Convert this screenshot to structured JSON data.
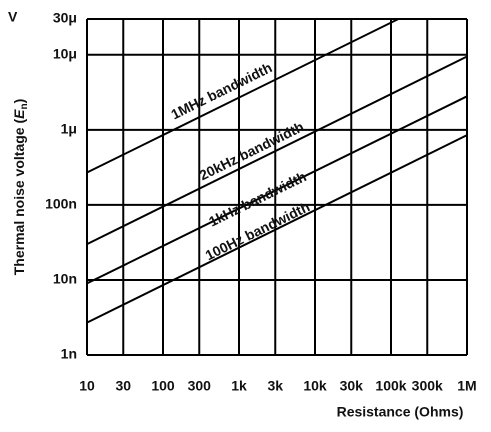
{
  "chart_data": {
    "type": "line",
    "y_unit": "V",
    "y_label": {
      "prefix": "Thermal noise voltage (",
      "symbol": "E",
      "subscript": "n",
      "suffix": ")"
    },
    "x_label": "Resistance (Ohms)",
    "log_x": true,
    "log_y": true,
    "grid": true,
    "xlim": [
      10,
      1000000
    ],
    "xticks": [
      10,
      30,
      100,
      300,
      {
        "value": 1000,
        "label": "1k"
      },
      {
        "value": 3000,
        "label": "3k"
      },
      {
        "value": 10000,
        "label": "10k"
      },
      {
        "value": 30000,
        "label": "30k"
      },
      {
        "value": 100000,
        "label": "100k"
      },
      {
        "value": 300000,
        "label": "300k"
      },
      {
        "value": 1000000,
        "label": "1M"
      }
    ],
    "ylim": [
      1e-09,
      3e-05
    ],
    "yticks": [
      {
        "value": 1e-09,
        "label": "1n"
      },
      {
        "value": 1e-08,
        "label": "10n"
      },
      {
        "value": 1e-07,
        "label": "100n"
      },
      {
        "value": 1e-06,
        "label": "1μ"
      },
      {
        "value": 1e-05,
        "label": "10μ"
      },
      {
        "value": 3e-05,
        "label": "30μ"
      }
    ],
    "series": [
      {
        "name": "1MHz bandwidth",
        "color": "#000000",
        "x": [
          10,
          125000
        ],
        "values": [
          2.7e-07,
          3e-05
        ]
      },
      {
        "name": "20kHz bandwidth",
        "color": "#000000",
        "x": [
          10,
          1000000
        ],
        "values": [
          3e-08,
          9.5e-06
        ]
      },
      {
        "name": "1kHz bandwidth",
        "color": "#000000",
        "x": [
          10,
          1000000
        ],
        "values": [
          9e-09,
          2.8e-06
        ]
      },
      {
        "name": "100Hz bandwidth",
        "color": "#000000",
        "x": [
          10,
          1000000
        ],
        "values": [
          2.7e-09,
          8.5e-07
        ]
      }
    ]
  }
}
